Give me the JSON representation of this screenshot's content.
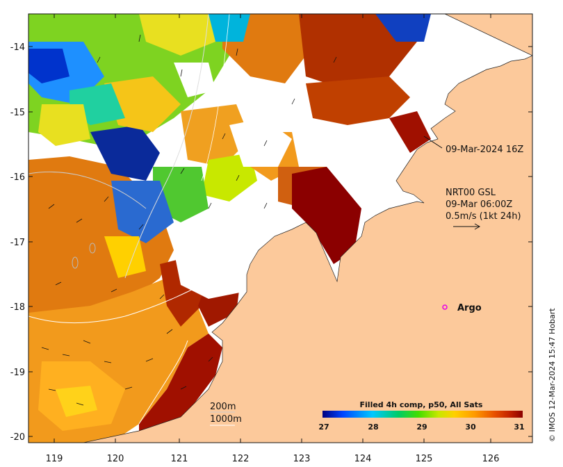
{
  "map": {
    "x_ticks": [
      "119",
      "120",
      "121",
      "122",
      "123",
      "124",
      "125",
      "126"
    ],
    "y_ticks": [
      "-14",
      "-15",
      "-16",
      "-17",
      "-18",
      "-19",
      "-20"
    ],
    "x_range": [
      118.6,
      126.7
    ],
    "y_range": [
      -20.1,
      -13.5
    ]
  },
  "annotations": {
    "timestamp": "09-Mar-2024 16Z",
    "nrt_label": "NRT00 GSL",
    "nrt_time": "09-Mar 06:00Z",
    "vector_scale": "0.5m/s (1kt 24h)",
    "argo_label": "Argo",
    "bathy_200": "200m",
    "bathy_1000": "1000m"
  },
  "colorbar": {
    "title": "Filled 4h comp, p50, All Sats",
    "ticks": [
      "27",
      "28",
      "29",
      "30",
      "31"
    ],
    "min": 27,
    "max": 31,
    "colors": [
      "#00007f",
      "#0044ff",
      "#00c8ff",
      "#00cc66",
      "#44dd00",
      "#c8e800",
      "#ffd000",
      "#ff9a00",
      "#e85000",
      "#c02000",
      "#8b0000"
    ]
  },
  "credit": "© IMOS 12-Mar-2024 15:47 Hobart",
  "colors": {
    "land": "#fcc99b",
    "no_data": "#ffffff",
    "argo": "#e600e6"
  }
}
